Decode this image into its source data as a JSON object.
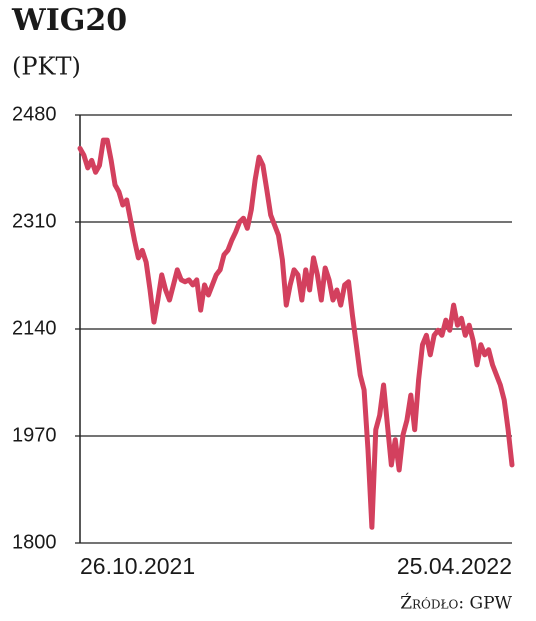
{
  "chart_data": {
    "type": "line",
    "title": "WIG20",
    "subtitle": "(PKT)",
    "source": "Źródło: GPW",
    "categories": [
      "26.10.2021",
      null,
      null,
      null,
      null,
      null,
      null,
      null,
      null,
      null,
      null,
      null,
      null,
      null,
      null,
      null,
      null,
      null,
      null,
      null,
      null,
      null,
      null,
      null,
      null,
      null,
      null,
      null,
      null,
      null,
      null,
      null,
      null,
      null,
      null,
      null,
      null,
      null,
      null,
      null,
      null,
      null,
      null,
      null,
      null,
      null,
      null,
      null,
      null,
      null,
      null,
      null,
      null,
      null,
      null,
      null,
      null,
      null,
      null,
      null,
      null,
      null,
      null,
      null,
      null,
      null,
      null,
      null,
      null,
      null,
      null,
      null,
      null,
      null,
      null,
      null,
      null,
      null,
      null,
      null,
      null,
      null,
      null,
      null,
      null,
      null,
      null,
      null,
      null,
      null,
      null,
      null,
      null,
      null,
      null,
      null,
      null,
      null,
      null,
      null,
      null,
      null,
      null,
      null,
      null,
      null,
      null,
      null,
      null,
      null,
      null,
      "25.04.2022"
    ],
    "series": [
      {
        "name": "WIG20",
        "color": "#d3405e",
        "values": [
          2427,
          2416,
          2396,
          2408,
          2389,
          2400,
          2440,
          2440,
          2408,
          2369,
          2358,
          2337,
          2345,
          2313,
          2281,
          2253,
          2265,
          2246,
          2202,
          2151,
          2186,
          2226,
          2202,
          2186,
          2210,
          2234,
          2218,
          2215,
          2218,
          2210,
          2218,
          2170,
          2210,
          2194,
          2210,
          2226,
          2234,
          2258,
          2265,
          2281,
          2294,
          2310,
          2316,
          2300,
          2329,
          2377,
          2413,
          2400,
          2361,
          2321,
          2305,
          2289,
          2250,
          2178,
          2210,
          2234,
          2226,
          2186,
          2234,
          2202,
          2253,
          2226,
          2186,
          2237,
          2218,
          2186,
          2202,
          2178,
          2210,
          2215,
          2162,
          2115,
          2067,
          2043,
          1948,
          1825,
          1980,
          2003,
          2051,
          1987,
          1924,
          1964,
          1916,
          1972,
          1995,
          2035,
          1980,
          2059,
          2115,
          2130,
          2099,
          2130,
          2138,
          2130,
          2154,
          2138,
          2178,
          2146,
          2157,
          2130,
          2146,
          2122,
          2083,
          2115,
          2099,
          2107,
          2083,
          2067,
          2051,
          2027,
          1980,
          1924
        ]
      }
    ],
    "ylim": [
      1800,
      2480
    ],
    "yticks": [
      2480,
      2310,
      2140,
      1970,
      1800
    ],
    "grid": true
  }
}
